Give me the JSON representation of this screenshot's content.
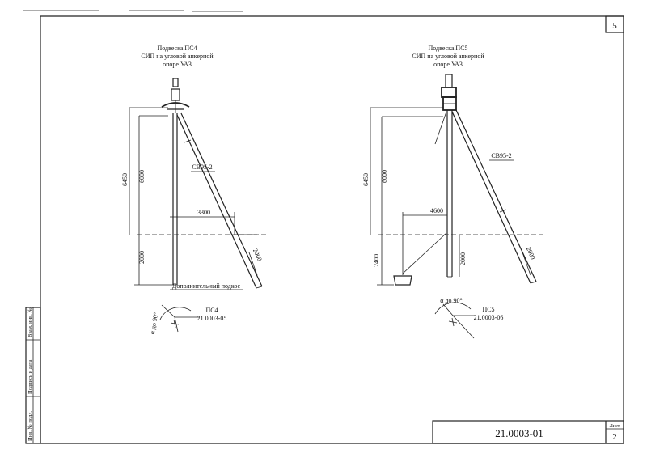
{
  "sheet": {
    "page_number": "5",
    "doc_code": "21.0003-01",
    "sheet_label": "Лист",
    "sheet_number": "2",
    "side_stamp": [
      "Инв. № подл.",
      "Подпись и дата",
      "Взам. инв. №"
    ]
  },
  "ps4": {
    "title_lines": [
      "Подвеска ПС4",
      "СИП на угловой анкерной",
      "опоре УА3"
    ],
    "strut_label": "СВ95-2",
    "dim_total": "6450",
    "dim_above": "6000",
    "dim_below": "2000",
    "dim_offset": "3300",
    "strut_below": "2000",
    "note": "Дополнительный подкос",
    "angle_label": "α до 90°",
    "plan_label": "ПС4",
    "plan_code": "21.0003-05"
  },
  "ps5": {
    "title_lines": [
      "Подвеска ПС5",
      "СИП на угловой анкерной",
      "опоре УА3"
    ],
    "strut_label": "СВ95-2",
    "dim_total": "6450",
    "dim_above": "6000",
    "dim_below": "2400",
    "dim_offset": "4600",
    "pole_below": "2000",
    "strut_below": "2000",
    "angle_label": "α до 90°",
    "plan_label": "ПС5",
    "plan_code": "21.0003-06"
  }
}
